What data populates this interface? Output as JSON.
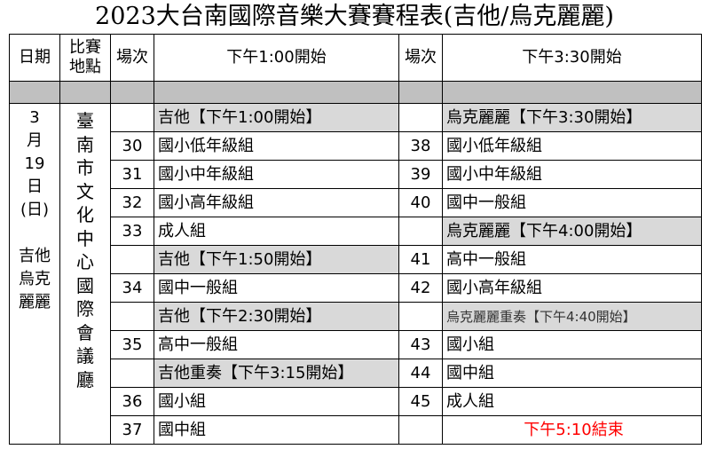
{
  "title": "2023大台南國際音樂大賽賽程表(吉他/烏克麗麗)",
  "headers": {
    "date": "日期",
    "venue": "比賽地點",
    "slot_left": "場次",
    "left": "下午1:00開始",
    "slot_right": "場次",
    "right": "下午3:30開始"
  },
  "date": [
    "3",
    "月",
    "19",
    "日",
    "(日)",
    "",
    "吉他",
    "烏克",
    "麗麗"
  ],
  "venue": [
    "臺",
    "南",
    "市",
    "文",
    "化",
    "中",
    "心",
    "國",
    "際",
    "會",
    "議",
    "廳"
  ],
  "rows": [
    {
      "ln": "",
      "lt": "吉他【下午1:00開始】",
      "lg": true,
      "rn": "",
      "rt": "烏克麗麗【下午3:30開始】",
      "rg": true
    },
    {
      "ln": "30",
      "lt": "國小低年級組",
      "rn": "38",
      "rt": "國小低年級組"
    },
    {
      "ln": "31",
      "lt": "國小中年級組",
      "rn": "39",
      "rt": "國小中年級組"
    },
    {
      "ln": "32",
      "lt": "國小高年級組",
      "rn": "40",
      "rt": "國中一般組"
    },
    {
      "ln": "33",
      "lt": "成人組",
      "rn": "",
      "rt": "烏克麗麗【下午4:00開始】",
      "rg": true
    },
    {
      "ln": "",
      "lt": "吉他【下午1:50開始】",
      "lg": true,
      "rn": "41",
      "rt": "高中一般組"
    },
    {
      "ln": "34",
      "lt": "國中一般組",
      "rn": "42",
      "rt": "國小高年級組"
    },
    {
      "ln": "",
      "lt": "吉他【下午2:30開始】",
      "lg": true,
      "rn": "",
      "rt": "烏克麗麗重奏【下午4:40開始】",
      "rg": true,
      "rs": true
    },
    {
      "ln": "35",
      "lt": "高中一般組",
      "rn": "43",
      "rt": "國小組"
    },
    {
      "ln": "",
      "lt": "吉他重奏【下午3:15開始】",
      "lg": true,
      "rn": "44",
      "rt": "國中組"
    },
    {
      "ln": "36",
      "lt": "國小組",
      "rn": "45",
      "rt": "成人組"
    },
    {
      "ln": "37",
      "lt": "國中組",
      "rn": "",
      "rt": "下午5:10結束",
      "rr": true
    }
  ],
  "colors": {
    "section": "#d9d9d9",
    "band": "#c0c0c0",
    "end": "#ff0000"
  }
}
